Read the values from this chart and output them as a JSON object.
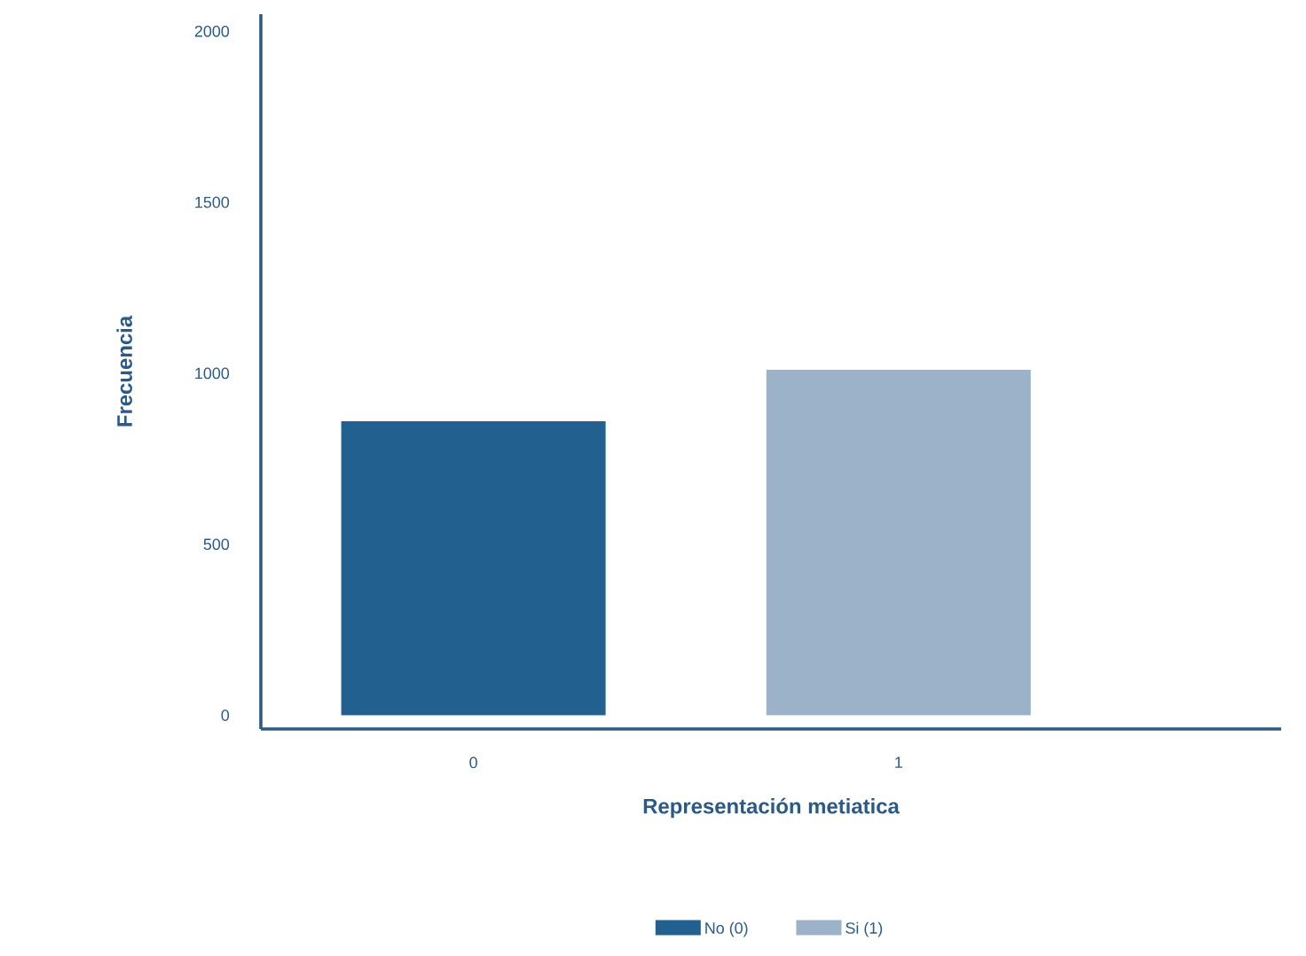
{
  "chart_data": {
    "type": "bar",
    "xlabel": "Representación metiatica",
    "ylabel": "Frecuencia",
    "categories": [
      "0",
      "1"
    ],
    "series": [
      {
        "name": "No (0)",
        "color": "#22608f",
        "values": [
          860,
          null
        ]
      },
      {
        "name": "Si (1)",
        "color": "#9bb2c9",
        "values": [
          null,
          1010
        ]
      }
    ],
    "ylim": [
      -40,
      2050
    ],
    "yticks": [
      0,
      500,
      1000,
      1500,
      2000
    ],
    "grid": false,
    "legend": "bottom"
  }
}
